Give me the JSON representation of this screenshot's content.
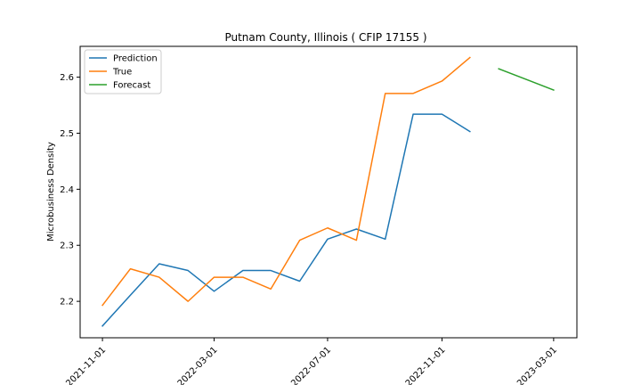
{
  "chart_data": {
    "type": "line",
    "title": "Putnam County, Illinois ( CFIP 17155 )",
    "xlabel": "",
    "ylabel": "Microbusiness Density",
    "xlim": [
      "2021-10-08",
      "2023-03-26"
    ],
    "ylim": [
      2.135,
      2.655
    ],
    "x_ticks": [
      "2021-11-01",
      "2022-03-01",
      "2022-07-01",
      "2022-11-01",
      "2023-03-01"
    ],
    "y_ticks": [
      2.2,
      2.3,
      2.4,
      2.5,
      2.6
    ],
    "grid": false,
    "legend_position": "upper-left",
    "colors": {
      "Prediction": "#1f77b4",
      "True": "#ff7f0e",
      "Forecast": "#2ca02c"
    },
    "series": [
      {
        "name": "Prediction",
        "x": [
          "2021-11-01",
          "2021-12-01",
          "2022-01-01",
          "2022-02-01",
          "2022-03-01",
          "2022-04-01",
          "2022-05-01",
          "2022-06-01",
          "2022-07-01",
          "2022-08-01",
          "2022-09-01",
          "2022-10-01",
          "2022-11-01",
          "2022-12-01"
        ],
        "y": [
          2.156,
          2.211,
          2.267,
          2.255,
          2.218,
          2.255,
          2.255,
          2.236,
          2.311,
          2.329,
          2.311,
          2.534,
          2.534,
          2.503
        ]
      },
      {
        "name": "True",
        "x": [
          "2021-11-01",
          "2021-12-01",
          "2022-01-01",
          "2022-02-01",
          "2022-03-01",
          "2022-04-01",
          "2022-05-01",
          "2022-06-01",
          "2022-07-01",
          "2022-08-01",
          "2022-09-01",
          "2022-10-01",
          "2022-11-01",
          "2022-12-01"
        ],
        "y": [
          2.193,
          2.258,
          2.243,
          2.2,
          2.243,
          2.243,
          2.222,
          2.309,
          2.331,
          2.309,
          2.571,
          2.571,
          2.593,
          2.635
        ]
      },
      {
        "name": "Forecast",
        "x": [
          "2023-01-01",
          "2023-02-01",
          "2023-03-01"
        ],
        "y": [
          2.615,
          2.595,
          2.577
        ]
      }
    ]
  }
}
